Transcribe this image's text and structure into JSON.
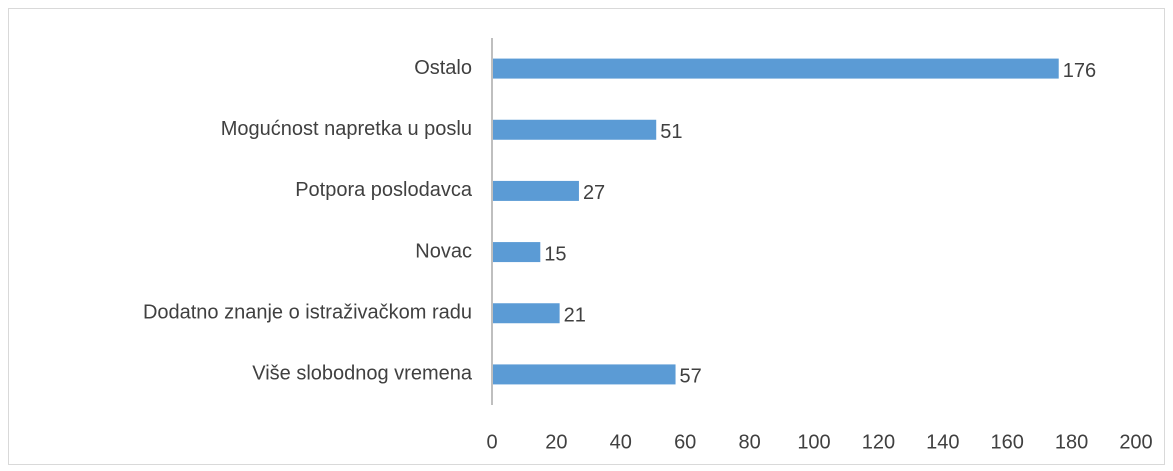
{
  "chart_data": {
    "type": "bar",
    "orientation": "horizontal",
    "categories": [
      "Ostalo",
      "Mogućnost napretka u poslu",
      "Potpora poslodavca",
      "Novac",
      "Dodatno znanje o istraživačkom radu",
      "Više slobodnog vremena"
    ],
    "values": [
      176,
      51,
      27,
      15,
      21,
      57
    ],
    "color": "#5b9bd5",
    "xlim": [
      0,
      200
    ],
    "xticks": [
      0,
      20,
      40,
      60,
      80,
      100,
      120,
      140,
      160,
      180,
      200
    ],
    "grid": false
  }
}
